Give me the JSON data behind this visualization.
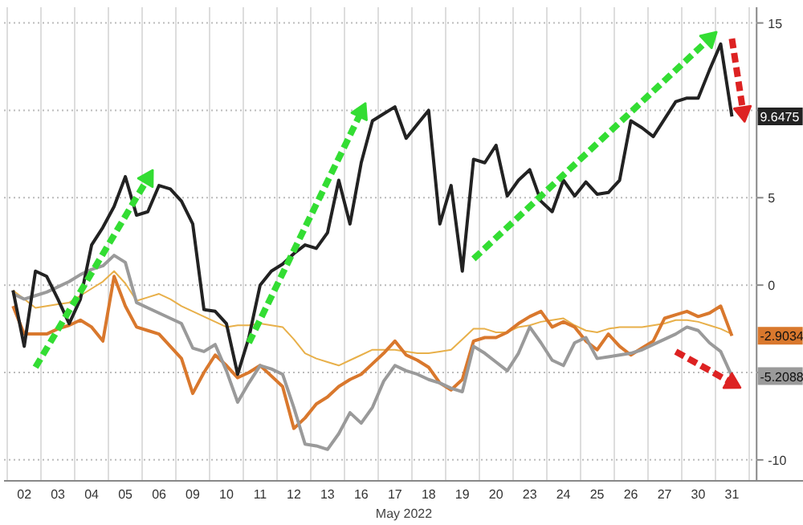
{
  "chart_data": {
    "type": "line",
    "xlabel": "May 2022",
    "categories": [
      null,
      "02",
      null,
      null,
      "03",
      null,
      null,
      "04",
      null,
      null,
      "05",
      null,
      null,
      "06",
      null,
      null,
      "09",
      null,
      null,
      "10",
      null,
      null,
      "11",
      null,
      null,
      "12",
      null,
      null,
      "13",
      null,
      null,
      "16",
      null,
      null,
      "17",
      null,
      null,
      "18",
      null,
      null,
      "19",
      null,
      null,
      "20",
      null,
      null,
      "23",
      null,
      null,
      "24",
      null,
      null,
      "25",
      null,
      null,
      "26",
      null,
      null,
      "27",
      null,
      null,
      "30",
      null,
      null,
      "31",
      null
    ],
    "ylim": [
      -11.2,
      15.9
    ],
    "yticks": [
      15,
      {
        "value": 10,
        "label": null
      },
      5,
      0,
      {
        "value": -5,
        "label": null
      },
      -10
    ],
    "grid": true,
    "line_style": "solid",
    "series": [
      {
        "color": "#e8b04a",
        "values": [
          -0.3,
          -0.8,
          -1.3,
          -1.2,
          -1.1,
          -1.0,
          -0.6,
          -0.2,
          0.2,
          0.8,
          0.1,
          -0.9,
          -0.7,
          -0.5,
          -0.8,
          -1.2,
          -1.5,
          -1.8,
          -2.1,
          -2.4,
          -2.3,
          -2.3,
          -2.2,
          -2.3,
          -2.4,
          -3.1,
          -3.9,
          -4.2,
          -4.4,
          -4.6,
          -4.3,
          -4.0,
          -3.7,
          -3.7,
          -3.7,
          -3.8,
          -3.9,
          -3.9,
          -3.8,
          -3.7,
          -3.1,
          -2.5,
          -2.5,
          -2.7,
          -2.7,
          -2.4,
          -2.3,
          -2.1,
          -2.0,
          -1.9,
          -2.3,
          -2.6,
          -2.7,
          -2.5,
          -2.4,
          -2.4,
          -2.4,
          -2.3,
          -2.2,
          -2.0,
          -2.0,
          -2.1,
          -2.3,
          -2.5,
          -2.8,
          null
        ]
      },
      {
        "color": "#d9782d",
        "values": [
          -1.2,
          -2.8,
          -2.8,
          -2.8,
          -2.5,
          -2.3,
          -2.0,
          -2.4,
          -3.2,
          0.5,
          -1.2,
          -2.4,
          -2.6,
          -2.8,
          -3.5,
          -4.2,
          -6.2,
          -5.0,
          -4.0,
          -4.6,
          -5.3,
          -5.0,
          -4.6,
          -5.2,
          -5.8,
          -8.2,
          -7.6,
          -6.8,
          -6.4,
          -5.8,
          -5.4,
          -5.1,
          -4.5,
          -3.9,
          -3.2,
          -4.0,
          -4.3,
          -4.7,
          -5.6,
          -6.0,
          -5.4,
          -3.2,
          -3.0,
          -3.0,
          -2.7,
          -2.2,
          -1.8,
          -1.5,
          -2.4,
          -2.1,
          -2.4,
          -3.2,
          -3.7,
          -2.8,
          -3.5,
          -4.0,
          -3.6,
          -3.2,
          -1.9,
          -1.7,
          -1.5,
          -1.8,
          -1.6,
          -1.2,
          -2.9034,
          null
        ]
      },
      {
        "color": "#9a9a9a",
        "values": [
          -0.5,
          -0.8,
          -0.6,
          -0.4,
          -0.1,
          0.2,
          0.6,
          0.9,
          1.1,
          1.7,
          1.3,
          -1.0,
          -1.3,
          -1.6,
          -1.9,
          -2.2,
          -3.6,
          -3.8,
          -3.4,
          -4.9,
          -6.7,
          -5.6,
          -4.6,
          -4.8,
          -5.1,
          -7.0,
          -9.1,
          -9.2,
          -9.4,
          -8.5,
          -7.3,
          -7.9,
          -7.0,
          -5.5,
          -4.6,
          -4.9,
          -5.1,
          -5.4,
          -5.6,
          -5.9,
          -6.1,
          -3.5,
          -3.9,
          -4.4,
          -4.9,
          -3.9,
          -2.4,
          -3.3,
          -4.3,
          -4.6,
          -3.3,
          -3.0,
          -4.2,
          -4.1,
          -4.0,
          -3.9,
          -3.7,
          -3.4,
          -3.1,
          -2.8,
          -2.4,
          -2.6,
          -3.3,
          -3.8,
          -5.2088,
          null
        ]
      },
      {
        "color": "#222222",
        "values": [
          -0.3,
          -3.5,
          0.8,
          0.5,
          -0.8,
          -2.2,
          -0.8,
          2.3,
          3.3,
          4.5,
          6.2,
          4.0,
          4.2,
          5.7,
          5.5,
          4.8,
          3.5,
          -1.4,
          -1.5,
          -2.2,
          -5.1,
          -3.0,
          0.0,
          0.8,
          1.2,
          1.8,
          2.3,
          2.1,
          3.0,
          6.0,
          3.5,
          7.0,
          9.4,
          9.8,
          10.2,
          8.4,
          9.2,
          10.0,
          3.5,
          5.7,
          0.8,
          7.2,
          7.0,
          8.0,
          5.1,
          6.0,
          6.6,
          4.8,
          4.2,
          6.0,
          5.1,
          5.9,
          5.2,
          5.3,
          6.0,
          9.4,
          9.0,
          8.5,
          9.5,
          10.5,
          10.7,
          10.7,
          12.3,
          13.8,
          9.6475,
          null
        ]
      },
      {
        "color": "#33dd33",
        "line_style": "dashed",
        "values": [
          null,
          null,
          -4.7,
          null,
          null,
          null,
          null,
          null,
          null,
          null,
          null,
          null,
          6.1,
          null,
          null,
          null,
          null,
          null,
          null,
          null,
          null,
          null,
          null,
          null,
          null,
          null,
          null,
          null,
          null,
          null,
          null,
          null,
          null,
          null,
          null,
          null,
          null,
          null,
          null,
          null,
          null,
          null,
          null,
          null,
          null,
          null,
          null,
          null,
          null,
          null,
          null,
          null,
          null,
          null,
          null,
          null,
          null,
          null,
          null,
          null,
          null,
          null,
          null,
          null,
          null,
          null
        ]
      },
      {
        "color": "#33dd33",
        "line_style": "dashed",
        "values": [
          null,
          null,
          null,
          null,
          null,
          null,
          null,
          null,
          null,
          null,
          null,
          null,
          null,
          null,
          null,
          null,
          null,
          null,
          null,
          null,
          null,
          -3.3,
          null,
          null,
          null,
          null,
          null,
          null,
          null,
          null,
          null,
          9.9,
          null,
          null,
          null,
          null,
          null,
          null,
          null,
          null,
          null,
          null,
          null,
          null,
          null,
          null,
          null,
          null,
          null,
          null,
          null,
          null,
          null,
          null,
          null,
          null,
          null,
          null,
          null,
          null,
          null,
          null,
          null,
          null,
          null,
          null
        ]
      },
      {
        "color": "#33dd33",
        "line_style": "dashed",
        "values": [
          null,
          null,
          null,
          null,
          null,
          null,
          null,
          null,
          null,
          null,
          null,
          null,
          null,
          null,
          null,
          null,
          null,
          null,
          null,
          null,
          null,
          null,
          null,
          null,
          null,
          null,
          null,
          null,
          null,
          null,
          null,
          null,
          null,
          null,
          null,
          null,
          null,
          null,
          null,
          null,
          null,
          1.5,
          null,
          null,
          null,
          null,
          null,
          null,
          null,
          null,
          null,
          null,
          null,
          null,
          null,
          null,
          null,
          null,
          null,
          null,
          null,
          null,
          14.1,
          null,
          null,
          null
        ]
      },
      {
        "color": "#dd2222",
        "line_style": "dashed",
        "values": [
          null,
          null,
          null,
          null,
          null,
          null,
          null,
          null,
          null,
          null,
          null,
          null,
          null,
          null,
          null,
          null,
          null,
          null,
          null,
          null,
          null,
          null,
          null,
          null,
          null,
          null,
          null,
          null,
          null,
          null,
          null,
          null,
          null,
          null,
          null,
          null,
          null,
          null,
          null,
          null,
          null,
          null,
          null,
          null,
          null,
          null,
          null,
          null,
          null,
          null,
          null,
          null,
          null,
          null,
          null,
          null,
          null,
          null,
          null,
          null,
          null,
          null,
          null,
          null,
          14.1,
          9.9
        ]
      },
      {
        "color": "#dd2222",
        "line_style": "dashed",
        "values": [
          null,
          null,
          null,
          null,
          null,
          null,
          null,
          null,
          null,
          null,
          null,
          null,
          null,
          null,
          null,
          null,
          null,
          null,
          null,
          null,
          null,
          null,
          null,
          null,
          null,
          null,
          null,
          null,
          null,
          null,
          null,
          null,
          null,
          null,
          null,
          null,
          null,
          null,
          null,
          null,
          null,
          null,
          null,
          null,
          null,
          null,
          null,
          null,
          null,
          null,
          null,
          null,
          null,
          null,
          null,
          null,
          null,
          null,
          null,
          -3.8,
          null,
          null,
          null,
          null,
          -5.6,
          null
        ]
      }
    ],
    "annotations": [
      {
        "text": "9.6475",
        "y": 9.6475
      },
      {
        "text": "-2.9034",
        "y": -2.9034
      },
      {
        "text": "-5.2088",
        "y": -5.2088
      }
    ]
  }
}
